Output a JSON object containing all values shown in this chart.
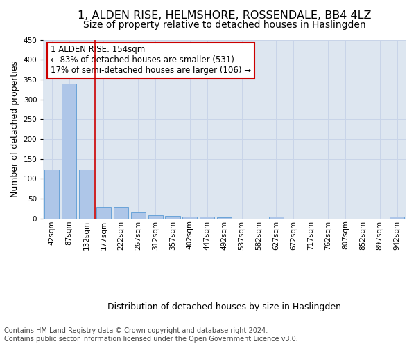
{
  "title": "1, ALDEN RISE, HELMSHORE, ROSSENDALE, BB4 4LZ",
  "subtitle": "Size of property relative to detached houses in Haslingden",
  "xlabel": "Distribution of detached houses by size in Haslingden",
  "ylabel": "Number of detached properties",
  "bar_labels": [
    "42sqm",
    "87sqm",
    "132sqm",
    "177sqm",
    "222sqm",
    "267sqm",
    "312sqm",
    "357sqm",
    "402sqm",
    "447sqm",
    "492sqm",
    "537sqm",
    "582sqm",
    "627sqm",
    "672sqm",
    "717sqm",
    "762sqm",
    "807sqm",
    "852sqm",
    "897sqm",
    "942sqm"
  ],
  "bar_values": [
    123,
    340,
    123,
    29,
    29,
    15,
    8,
    6,
    4,
    4,
    3,
    0,
    0,
    5,
    0,
    0,
    0,
    0,
    0,
    0,
    4
  ],
  "bar_color": "#aec6e8",
  "bar_edge_color": "#5b9bd5",
  "vline_x_idx": 2.5,
  "vline_color": "#cc0000",
  "annotation_line1": "1 ALDEN RISE: 154sqm",
  "annotation_line2": "← 83% of detached houses are smaller (531)",
  "annotation_line3": "17% of semi-detached houses are larger (106) →",
  "annotation_box_color": "#ffffff",
  "annotation_box_edge": "#cc0000",
  "ylim": [
    0,
    450
  ],
  "yticks": [
    0,
    50,
    100,
    150,
    200,
    250,
    300,
    350,
    400,
    450
  ],
  "grid_color": "#c8d4e8",
  "background_color": "#dde6f0",
  "footer": "Contains HM Land Registry data © Crown copyright and database right 2024.\nContains public sector information licensed under the Open Government Licence v3.0.",
  "title_fontsize": 11.5,
  "subtitle_fontsize": 10,
  "axis_label_fontsize": 9,
  "tick_fontsize": 7.5,
  "annotation_fontsize": 8.5,
  "footer_fontsize": 7
}
